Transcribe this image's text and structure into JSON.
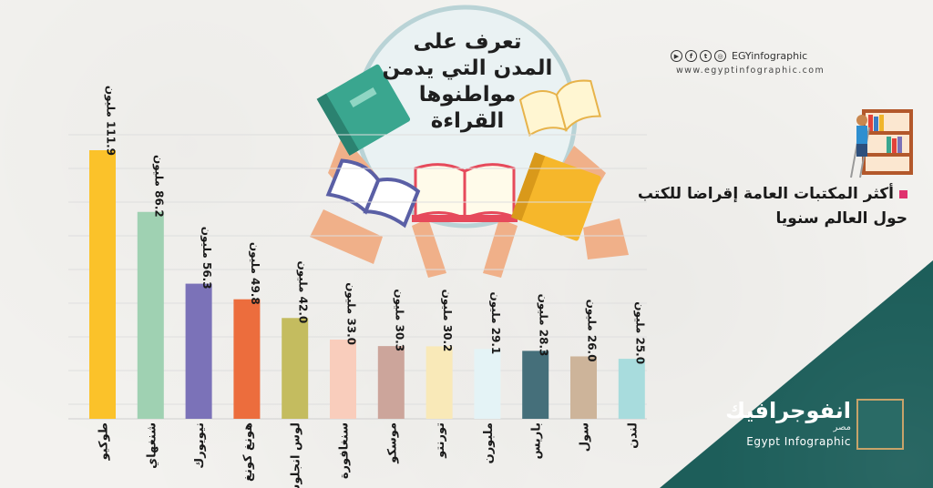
{
  "title": "تعرف على المدن التي يدمن مواطنوها القراءة",
  "subtitle": "أكثر المكتبات العامة إقراضا للكتب حول العالم سنويا",
  "social": {
    "handle": "EGYinfographic",
    "site": "www.egyptinfographic.com",
    "icons": [
      "youtube-icon",
      "facebook-icon",
      "twitter-icon",
      "instagram-icon"
    ]
  },
  "brand": {
    "arabic": "انفوجرافيك",
    "arabic_sub": "مصر",
    "english": "Egypt Infographic"
  },
  "colors": {
    "background": "#f3f2ef",
    "teal": "#1d5e5a",
    "bullet": "#e0326e"
  },
  "chart_data": {
    "type": "bar",
    "categories": [
      "طوكيو",
      "شنغهاي",
      "نيويورك",
      "هونغ كونغ",
      "لوس انجلوس",
      "سنغافورة",
      "موسكو",
      "تورنتو",
      "ملبورن",
      "باريس",
      "سول",
      "لندن"
    ],
    "values": [
      111.9,
      86.2,
      56.3,
      49.8,
      42.0,
      33.0,
      30.3,
      30.2,
      29.1,
      28.3,
      26.0,
      25.0
    ],
    "value_labels": [
      "111.9 مليون",
      "86.2 مليون",
      "56.3 مليون",
      "49.8 مليون",
      "42.0 مليون",
      "33.0 مليون",
      "30.3 مليون",
      "30.2 مليون",
      "29.1 مليون",
      "28.3 مليون",
      "26.0 مليون",
      "25.0 مليون"
    ],
    "colors": [
      "#fbc22a",
      "#9fd1b2",
      "#7b72b8",
      "#ec6d3d",
      "#c4bc5f",
      "#f9cdbc",
      "#cca59b",
      "#f9e9b8",
      "#e4f3f6",
      "#456f7a",
      "#cdb49a",
      "#a8dcdd"
    ],
    "title": "",
    "xlabel": "",
    "ylabel": "",
    "grid": true
  }
}
